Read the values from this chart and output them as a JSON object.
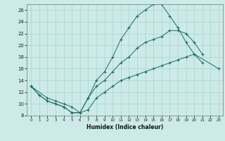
{
  "title": "",
  "xlabel": "Humidex (Indice chaleur)",
  "bg_color": "#cceae7",
  "line_color": "#1a6b6b",
  "grid_color": "#aad4d0",
  "xlim": [
    -0.5,
    23.5
  ],
  "ylim": [
    8,
    27
  ],
  "xticks": [
    0,
    1,
    2,
    3,
    4,
    5,
    6,
    7,
    8,
    9,
    10,
    11,
    12,
    13,
    14,
    15,
    16,
    17,
    18,
    19,
    20,
    21,
    22,
    23
  ],
  "yticks": [
    8,
    10,
    12,
    14,
    16,
    18,
    20,
    22,
    24,
    26
  ],
  "line1_x": [
    0,
    1,
    2,
    3,
    4,
    5,
    6,
    7,
    8,
    9,
    10,
    11,
    12,
    13,
    14,
    15,
    16,
    17,
    18,
    19,
    20,
    21
  ],
  "line1_y": [
    13,
    11.5,
    10.5,
    10,
    9.5,
    8.5,
    8.5,
    11,
    14,
    15.5,
    18,
    21,
    23,
    25,
    26,
    27,
    27,
    25,
    23,
    20.5,
    18.5,
    17
  ],
  "line2_x": [
    0,
    1,
    2,
    3,
    4,
    5,
    6,
    7,
    8,
    9,
    10,
    11,
    12,
    13,
    14,
    15,
    16,
    17,
    18,
    19,
    20,
    21
  ],
  "line2_y": [
    13,
    11.5,
    10.5,
    10,
    9.5,
    8.5,
    8.5,
    11,
    13,
    14,
    15.5,
    17,
    18,
    19.5,
    20.5,
    21,
    21.5,
    22.5,
    22.5,
    22,
    20.5,
    18.5
  ],
  "line3_x": [
    0,
    2,
    3,
    4,
    5,
    6,
    7,
    8,
    9,
    10,
    11,
    12,
    13,
    14,
    15,
    16,
    17,
    18,
    19,
    20,
    23
  ],
  "line3_y": [
    13,
    11,
    10.5,
    10,
    9.5,
    8.5,
    9,
    11,
    12,
    13,
    14,
    14.5,
    15,
    15.5,
    16,
    16.5,
    17,
    17.5,
    18,
    18.5,
    16
  ]
}
